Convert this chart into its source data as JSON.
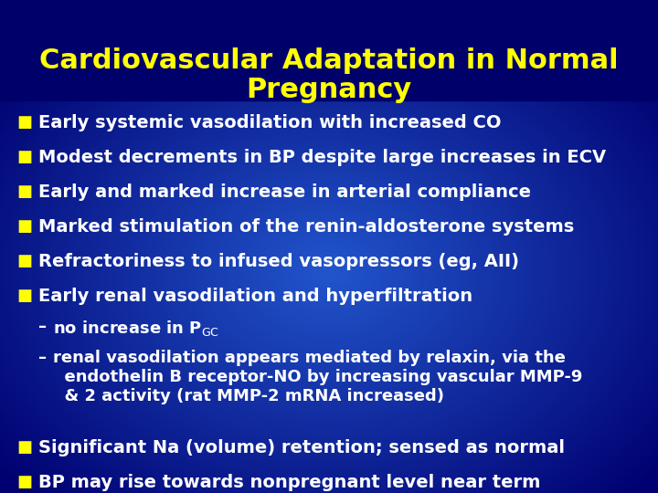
{
  "title": "Cardiovascular Adaptation in Normal\nPregnancy",
  "title_color": "#FFFF00",
  "title_fontsize": 22,
  "bullet_color": "#FFFF00",
  "text_color": "#FFFFFF",
  "bullet_symbol": "■",
  "bullet_fontsize": 14,
  "sub_fontsize": 13,
  "bullets": [
    "Early systemic vasodilation with increased CO",
    "Modest decrements in BP despite large increases in ECV",
    "Early and marked increase in arterial compliance",
    "Marked stimulation of the renin-aldosterone systems",
    "Refractoriness to infused vasopressors (eg, AII)",
    "Early renal vasodilation and hyperfiltration"
  ],
  "final_bullets": [
    "Significant Na (volume) retention; sensed as normal",
    "BP may rise towards nonpregnant level near term"
  ],
  "bg_dark": "#000070",
  "bg_mid": "#1a3aaa",
  "bg_light": "#2255cc"
}
